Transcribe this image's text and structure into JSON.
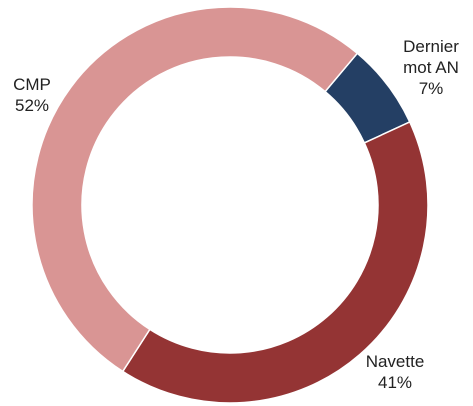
{
  "chart_data": {
    "type": "pie",
    "variant": "donut",
    "title": "",
    "legend": "none",
    "slices": [
      {
        "label": "Dernier mot AN",
        "label_lines": [
          "Dernier",
          "mot AN"
        ],
        "value": 7,
        "value_label": "7%",
        "color": "#243f64"
      },
      {
        "label": "Navette",
        "label_lines": [
          "Navette"
        ],
        "value": 41,
        "value_label": "41%",
        "color": "#943434"
      },
      {
        "label": "CMP",
        "label_lines": [
          "CMP"
        ],
        "value": 52,
        "value_label": "52%",
        "color": "#d99594"
      }
    ]
  }
}
